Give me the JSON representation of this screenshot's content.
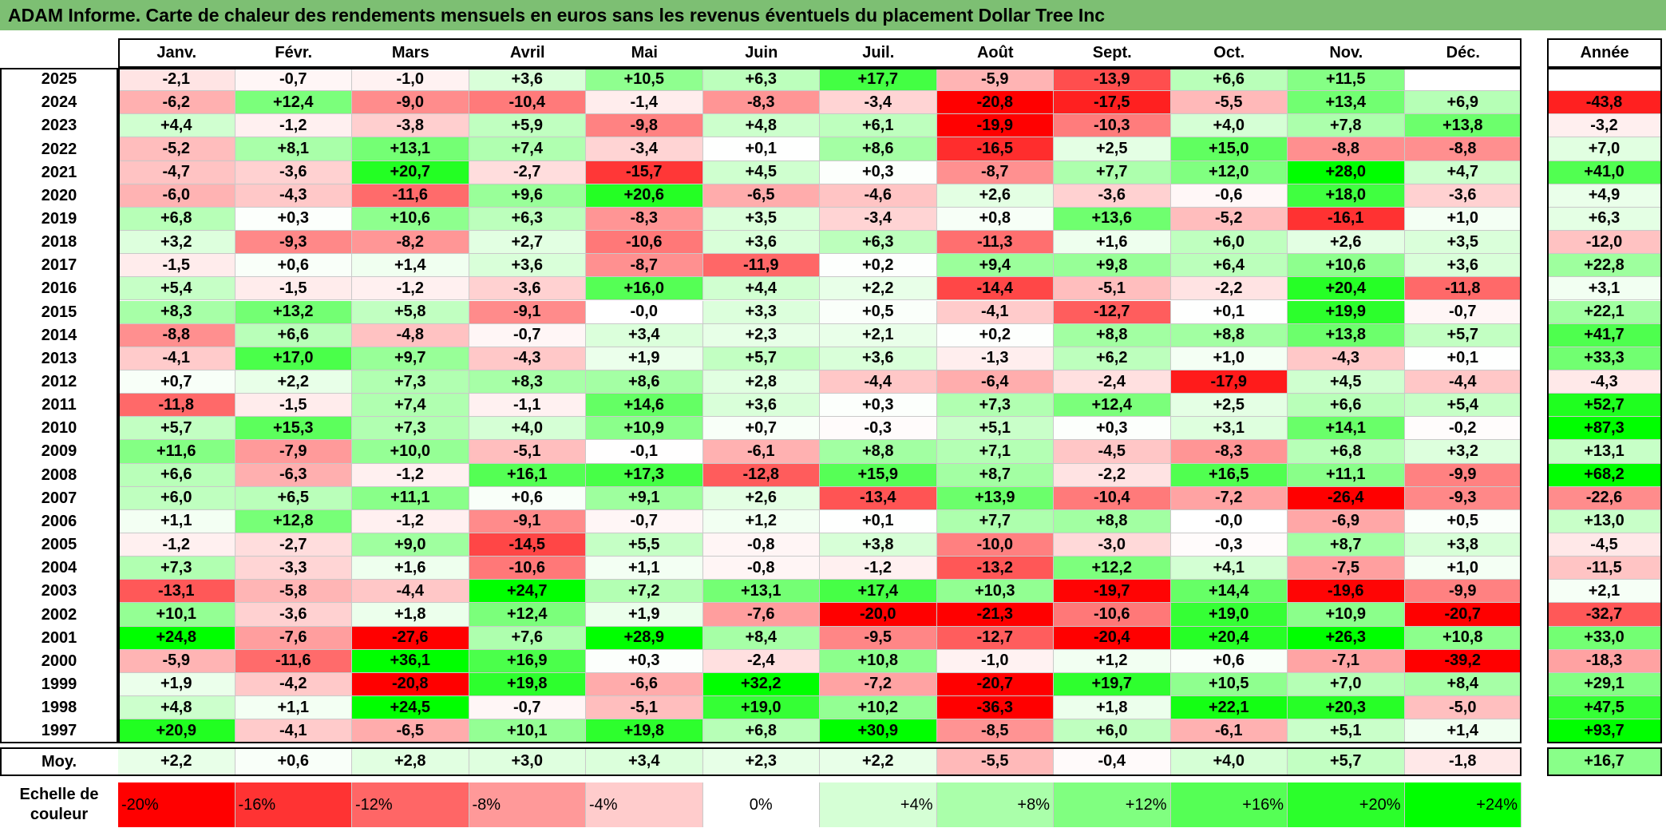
{
  "title": "ADAM Informe. Carte de chaleur des rendements mensuels en euros sans les revenus éventuels du placement Dollar Tree Inc",
  "chart_data": {
    "type": "heatmap",
    "columns": [
      "Janv.",
      "Févr.",
      "Mars",
      "Avril",
      "Mai",
      "Juin",
      "Juil.",
      "Août",
      "Sept.",
      "Oct.",
      "Nov.",
      "Déc."
    ],
    "annual_header": "Année",
    "avg_label": "Moy.",
    "rows": [
      {
        "year": "2025",
        "values": [
          "-2,1",
          "-0,7",
          "-1,0",
          "+3,6",
          "+10,5",
          "+6,3",
          "+17,7",
          "-5,9",
          "-13,9",
          "+6,6",
          "+11,5",
          ""
        ],
        "annual": ""
      },
      {
        "year": "2024",
        "values": [
          "-6,2",
          "+12,4",
          "-9,0",
          "-10,4",
          "-1,4",
          "-8,3",
          "-3,4",
          "-20,8",
          "-17,5",
          "-5,5",
          "+13,4",
          "+6,9"
        ],
        "annual": "-43,8"
      },
      {
        "year": "2023",
        "values": [
          "+4,4",
          "-1,2",
          "-3,8",
          "+5,9",
          "-9,8",
          "+4,8",
          "+6,1",
          "-19,9",
          "-10,3",
          "+4,0",
          "+7,8",
          "+13,8"
        ],
        "annual": "-3,2"
      },
      {
        "year": "2022",
        "values": [
          "-5,2",
          "+8,1",
          "+13,1",
          "+7,4",
          "-3,4",
          "+0,1",
          "+8,6",
          "-16,5",
          "+2,5",
          "+15,0",
          "-8,8",
          "-8,8"
        ],
        "annual": "+7,0"
      },
      {
        "year": "2021",
        "values": [
          "-4,7",
          "-3,6",
          "+20,7",
          "-2,7",
          "-15,7",
          "+4,5",
          "+0,3",
          "-8,7",
          "+7,7",
          "+12,0",
          "+28,0",
          "+4,7"
        ],
        "annual": "+41,0"
      },
      {
        "year": "2020",
        "values": [
          "-6,0",
          "-4,3",
          "-11,6",
          "+9,6",
          "+20,6",
          "-6,5",
          "-4,6",
          "+2,6",
          "-3,6",
          "-0,6",
          "+18,0",
          "-3,6"
        ],
        "annual": "+4,9"
      },
      {
        "year": "2019",
        "values": [
          "+6,8",
          "+0,3",
          "+10,6",
          "+6,3",
          "-8,3",
          "+3,5",
          "-3,4",
          "+0,8",
          "+13,6",
          "-5,2",
          "-16,1",
          "+1,0"
        ],
        "annual": "+6,3"
      },
      {
        "year": "2018",
        "values": [
          "+3,2",
          "-9,3",
          "-8,2",
          "+2,7",
          "-10,6",
          "+3,6",
          "+6,3",
          "-11,3",
          "+1,6",
          "+6,0",
          "+2,6",
          "+3,5"
        ],
        "annual": "-12,0"
      },
      {
        "year": "2017",
        "values": [
          "-1,5",
          "+0,6",
          "+1,4",
          "+3,6",
          "-8,7",
          "-11,9",
          "+0,2",
          "+9,4",
          "+9,8",
          "+6,4",
          "+10,6",
          "+3,6"
        ],
        "annual": "+22,8"
      },
      {
        "year": "2016",
        "values": [
          "+5,4",
          "-1,5",
          "-1,2",
          "-3,6",
          "+16,0",
          "+4,4",
          "+2,2",
          "-14,4",
          "-5,1",
          "-2,2",
          "+20,4",
          "-11,8"
        ],
        "annual": "+3,1"
      },
      {
        "year": "2015",
        "values": [
          "+8,3",
          "+13,2",
          "+5,8",
          "-9,1",
          "-0,0",
          "+3,3",
          "+0,5",
          "-4,1",
          "-12,7",
          "+0,1",
          "+19,9",
          "-0,7"
        ],
        "annual": "+22,1"
      },
      {
        "year": "2014",
        "values": [
          "-8,8",
          "+6,6",
          "-4,8",
          "-0,7",
          "+3,4",
          "+2,3",
          "+2,1",
          "+0,2",
          "+8,8",
          "+8,8",
          "+13,8",
          "+5,7"
        ],
        "annual": "+41,7"
      },
      {
        "year": "2013",
        "values": [
          "-4,1",
          "+17,0",
          "+9,7",
          "-4,3",
          "+1,9",
          "+5,7",
          "+3,6",
          "-1,3",
          "+6,2",
          "+1,0",
          "-4,3",
          "+0,1"
        ],
        "annual": "+33,3"
      },
      {
        "year": "2012",
        "values": [
          "+0,7",
          "+2,2",
          "+7,3",
          "+8,3",
          "+8,6",
          "+2,8",
          "-4,4",
          "-6,4",
          "-2,4",
          "-17,9",
          "+4,5",
          "-4,4"
        ],
        "annual": "-4,3"
      },
      {
        "year": "2011",
        "values": [
          "-11,8",
          "-1,5",
          "+7,4",
          "-1,1",
          "+14,6",
          "+3,6",
          "+0,3",
          "+7,3",
          "+12,4",
          "+2,5",
          "+6,6",
          "+5,4"
        ],
        "annual": "+52,7"
      },
      {
        "year": "2010",
        "values": [
          "+5,7",
          "+15,3",
          "+7,3",
          "+4,0",
          "+10,9",
          "+0,7",
          "-0,3",
          "+5,1",
          "+0,3",
          "+3,1",
          "+14,1",
          "-0,2"
        ],
        "annual": "+87,3"
      },
      {
        "year": "2009",
        "values": [
          "+11,6",
          "-7,9",
          "+10,0",
          "-5,1",
          "-0,1",
          "-6,1",
          "+8,8",
          "+7,1",
          "-4,5",
          "-8,3",
          "+6,8",
          "+3,2"
        ],
        "annual": "+13,1"
      },
      {
        "year": "2008",
        "values": [
          "+6,6",
          "-6,3",
          "-1,2",
          "+16,1",
          "+17,3",
          "-12,8",
          "+15,9",
          "+8,7",
          "-2,2",
          "+16,5",
          "+11,1",
          "-9,9"
        ],
        "annual": "+68,2"
      },
      {
        "year": "2007",
        "values": [
          "+6,0",
          "+6,5",
          "+11,1",
          "+0,6",
          "+9,1",
          "+2,6",
          "-13,4",
          "+13,9",
          "-10,4",
          "-7,2",
          "-26,4",
          "-9,3"
        ],
        "annual": "-22,6"
      },
      {
        "year": "2006",
        "values": [
          "+1,1",
          "+12,8",
          "-1,2",
          "-9,1",
          "-0,7",
          "+1,2",
          "+0,1",
          "+7,7",
          "+8,8",
          "-0,0",
          "-6,9",
          "+0,5"
        ],
        "annual": "+13,0"
      },
      {
        "year": "2005",
        "values": [
          "-1,2",
          "-2,7",
          "+9,0",
          "-14,5",
          "+5,5",
          "-0,8",
          "+3,8",
          "-10,0",
          "-3,0",
          "-0,3",
          "+8,7",
          "+3,8"
        ],
        "annual": "-4,5"
      },
      {
        "year": "2004",
        "values": [
          "+7,3",
          "-3,3",
          "+1,6",
          "-10,6",
          "+1,1",
          "-0,8",
          "-1,2",
          "-13,2",
          "+12,2",
          "+4,1",
          "-7,5",
          "+1,0"
        ],
        "annual": "-11,5"
      },
      {
        "year": "2003",
        "values": [
          "-13,1",
          "-5,8",
          "-4,4",
          "+24,7",
          "+7,2",
          "+13,1",
          "+17,4",
          "+10,3",
          "-19,7",
          "+14,4",
          "-19,6",
          "-9,9"
        ],
        "annual": "+2,1"
      },
      {
        "year": "2002",
        "values": [
          "+10,1",
          "-3,6",
          "+1,8",
          "+12,4",
          "+1,9",
          "-7,6",
          "-20,0",
          "-21,3",
          "-10,6",
          "+19,0",
          "+10,9",
          "-20,7"
        ],
        "annual": "-32,7"
      },
      {
        "year": "2001",
        "values": [
          "+24,8",
          "-7,6",
          "-27,6",
          "+7,6",
          "+28,9",
          "+8,4",
          "-9,5",
          "-12,7",
          "-20,4",
          "+20,4",
          "+26,3",
          "+10,8"
        ],
        "annual": "+33,0"
      },
      {
        "year": "2000",
        "values": [
          "-5,9",
          "-11,6",
          "+36,1",
          "+16,9",
          "+0,3",
          "-2,4",
          "+10,8",
          "-1,0",
          "+1,2",
          "+0,6",
          "-7,1",
          "-39,2"
        ],
        "annual": "-18,3"
      },
      {
        "year": "1999",
        "values": [
          "+1,9",
          "-4,2",
          "-20,8",
          "+19,8",
          "-6,6",
          "+32,2",
          "-7,2",
          "-20,7",
          "+19,7",
          "+10,5",
          "+7,0",
          "+8,4"
        ],
        "annual": "+29,1"
      },
      {
        "year": "1998",
        "values": [
          "+4,8",
          "+1,1",
          "+24,5",
          "-0,7",
          "-5,1",
          "+19,0",
          "+10,2",
          "-36,3",
          "+1,8",
          "+22,1",
          "+20,3",
          "-5,0"
        ],
        "annual": "+47,5"
      },
      {
        "year": "1997",
        "values": [
          "+20,9",
          "-4,1",
          "-6,5",
          "+10,1",
          "+19,8",
          "+6,8",
          "+30,9",
          "-8,5",
          "+6,0",
          "-6,1",
          "+5,1",
          "+1,4"
        ],
        "annual": "+93,7"
      }
    ],
    "averages": [
      "+2,2",
      "+0,6",
      "+2,8",
      "+3,0",
      "+3,4",
      "+2,3",
      "+2,2",
      "-5,5",
      "-0,4",
      "+4,0",
      "+5,7",
      "-1,8"
    ],
    "average_annual": "+16,7",
    "scale_label": "Echelle de couleur",
    "scale": [
      "-20%",
      "-16%",
      "-12%",
      "-8%",
      "-4%",
      "0%",
      "+4%",
      "+8%",
      "+12%",
      "+16%",
      "+20%",
      "+24%"
    ],
    "colors": {
      "negative": "#ff0000",
      "neutral": "#ffffff",
      "positive": "#00ff00",
      "title_bar": "#7dbf73"
    }
  }
}
